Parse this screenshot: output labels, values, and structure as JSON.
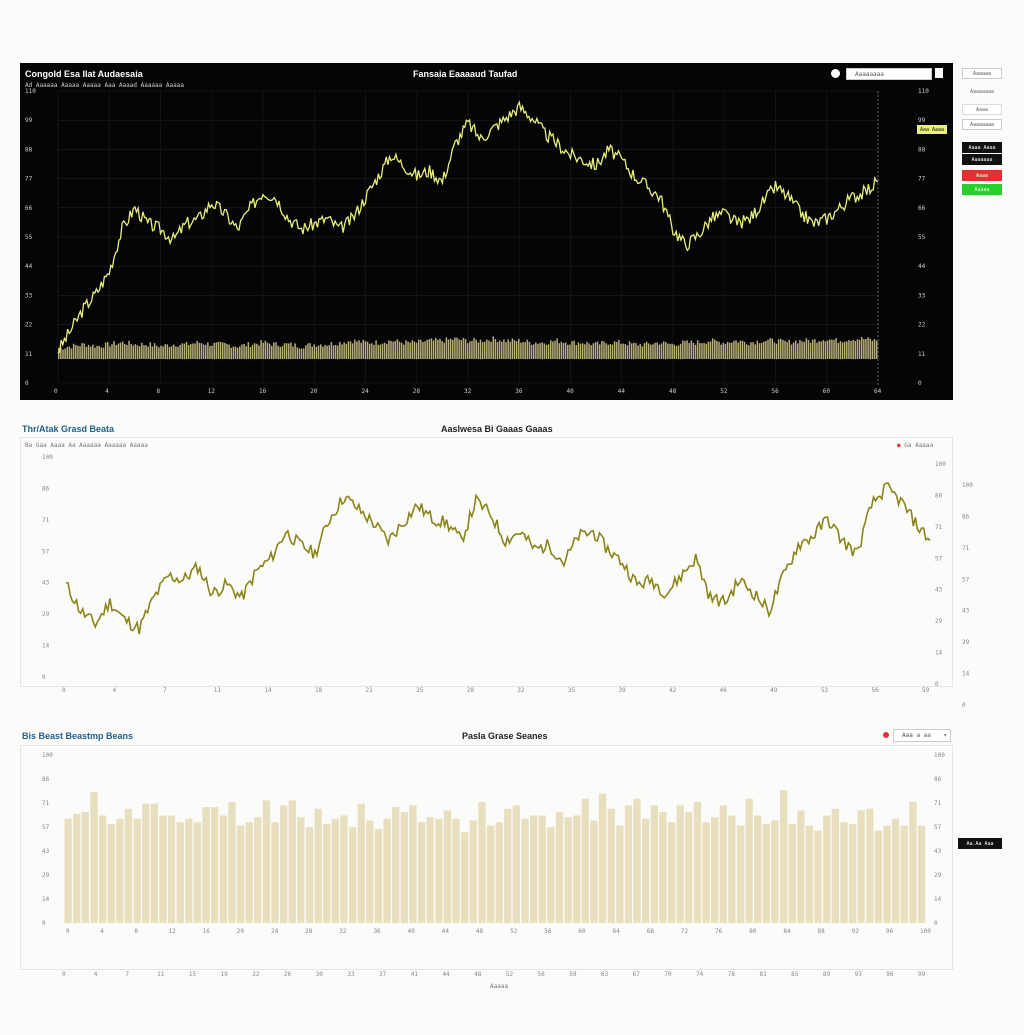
{
  "panel1": {
    "title_left": "Congold Esa Ilat Audaesaia",
    "title_center": "Fansaia Eaaaaud Taufad",
    "subtitle": "Ad Aaaaaa Aaaaa Aaaaa Aaa Aaaad Aaaaaa Aaaaa",
    "search_placeholder": "Aaaaaaaa",
    "side_buttons": [
      "Aaaaaa",
      "Aaaaaaaa",
      "Aaaa",
      "Aaaaaaaa",
      "Aaaa Aaaa",
      "Aaaaaaa",
      "Aaaa",
      "Aaaaa"
    ],
    "last_price_label": "Aaa Aaaa",
    "colors": {
      "line": "#e9ef7a",
      "volume": "#b9b17a",
      "bg": "#050505",
      "buy": "#25d22a",
      "sell": "#e33131"
    }
  },
  "panel2": {
    "title_left": "Thr/Atak Grasd Beata",
    "title_center": "Aaslwesa Bi Gaaas Gaaas",
    "subtitle": "Ba Gaa Aaaa Aa Aaaaaa Aaaaaa Aaaaa",
    "legend": "Ga Aaaaa",
    "colors": {
      "line": "#8b8419"
    }
  },
  "panel3": {
    "title_left": "Bis Beast Beastmp Beans",
    "title_center": "Pasla Grase Seanes",
    "select_value": "Aaa a aa",
    "last_price_label": "Aa.Aa Aaa",
    "xlabel": "Aaaaa",
    "colors": {
      "bar": "#e7dfbd"
    }
  },
  "chart_data": [
    {
      "type": "line",
      "title": "Fansaia Eaaaaud Taufad",
      "x": [
        0,
        1,
        2,
        3,
        4,
        5,
        6,
        7,
        8,
        9,
        10,
        11,
        12,
        13,
        14,
        15,
        16,
        17,
        18,
        19,
        20,
        21,
        22,
        23,
        24,
        25,
        26,
        27,
        28,
        29,
        30,
        31,
        32,
        33,
        34,
        35,
        36,
        37,
        38,
        39,
        40,
        41,
        42,
        43,
        44,
        45,
        46,
        47,
        48,
        49,
        50,
        51,
        52,
        53,
        54,
        55,
        56,
        57,
        58,
        59,
        60,
        61,
        62,
        63,
        64
      ],
      "series": [
        {
          "values": [
            12,
            20,
            28,
            34,
            42,
            58,
            66,
            60,
            58,
            54,
            60,
            62,
            68,
            64,
            58,
            66,
            72,
            70,
            62,
            58,
            60,
            62,
            58,
            62,
            70,
            78,
            86,
            82,
            78,
            80,
            76,
            90,
            98,
            92,
            96,
            100,
            104,
            100,
            94,
            90,
            86,
            84,
            82,
            88,
            84,
            78,
            74,
            70,
            58,
            52,
            56,
            62,
            64,
            60,
            62,
            68,
            74,
            70,
            64,
            60,
            62,
            66,
            70,
            72,
            76
          ]
        },
        {
          "values": [
            6,
            7,
            8,
            7,
            8,
            9,
            8,
            8,
            7,
            8,
            8,
            9,
            8,
            8,
            7,
            8,
            9,
            8,
            8,
            7,
            8,
            8,
            9,
            10,
            9,
            9,
            10,
            9,
            9,
            10,
            10,
            11,
            10,
            10,
            11,
            10,
            10,
            9,
            9,
            10,
            9,
            9,
            8,
            9,
            9,
            8,
            8,
            9,
            8,
            9,
            9,
            10,
            9,
            10,
            9,
            10,
            10,
            9,
            10,
            10,
            11,
            10,
            11,
            11,
            10
          ]
        }
      ],
      "ylim": [
        0,
        110
      ]
    },
    {
      "type": "line",
      "title": "Aaslwesa Bi Gaaas Gaaas",
      "x": [
        0,
        1,
        2,
        3,
        4,
        5,
        6,
        7,
        8,
        9,
        10,
        11,
        12,
        13,
        14,
        15,
        16,
        17,
        18,
        19,
        20,
        21,
        22,
        23,
        24,
        25,
        26,
        27,
        28,
        29,
        30,
        31,
        32,
        33,
        34,
        35,
        36,
        37,
        38,
        39,
        40,
        41,
        42,
        43,
        44,
        45,
        46,
        47,
        48,
        49,
        50,
        51,
        52,
        53,
        54,
        55,
        56,
        57,
        58,
        59
      ],
      "series": [
        {
          "name": "Ga Aaaaa",
          "values": [
            42,
            30,
            24,
            34,
            26,
            22,
            36,
            46,
            44,
            50,
            38,
            42,
            36,
            48,
            54,
            66,
            60,
            56,
            72,
            82,
            76,
            70,
            62,
            70,
            78,
            72,
            70,
            62,
            80,
            74,
            62,
            66,
            58,
            60,
            52,
            64,
            66,
            58,
            52,
            42,
            44,
            38,
            46,
            54,
            36,
            34,
            44,
            38,
            30,
            46,
            60,
            64,
            72,
            62,
            56,
            78,
            86,
            80,
            70,
            62
          ]
        }
      ],
      "ylim": [
        0,
        100
      ]
    },
    {
      "type": "bar",
      "title": "Pasla Grase Seanes",
      "xlabel": "Aaaaa",
      "values": [
        62,
        65,
        66,
        78,
        64,
        59,
        62,
        68,
        62,
        71,
        71,
        64,
        64,
        60,
        62,
        60,
        69,
        69,
        64,
        72,
        58,
        60,
        63,
        73,
        60,
        70,
        73,
        63,
        57,
        68,
        59,
        62,
        64,
        57,
        71,
        61,
        56,
        62,
        69,
        66,
        70,
        60,
        63,
        62,
        67,
        62,
        54,
        61,
        72,
        58,
        60,
        68,
        70,
        62,
        64,
        64,
        57,
        66,
        63,
        64,
        74,
        61,
        77,
        68,
        58,
        70,
        74,
        62,
        70,
        66,
        60,
        70,
        66,
        72,
        60,
        63,
        70,
        64,
        58,
        74,
        64,
        59,
        61,
        79,
        59,
        67,
        58,
        55,
        64,
        68,
        60,
        59,
        67,
        68,
        55,
        58,
        62,
        58,
        72,
        58
      ],
      "ylim": [
        0,
        100
      ]
    }
  ]
}
